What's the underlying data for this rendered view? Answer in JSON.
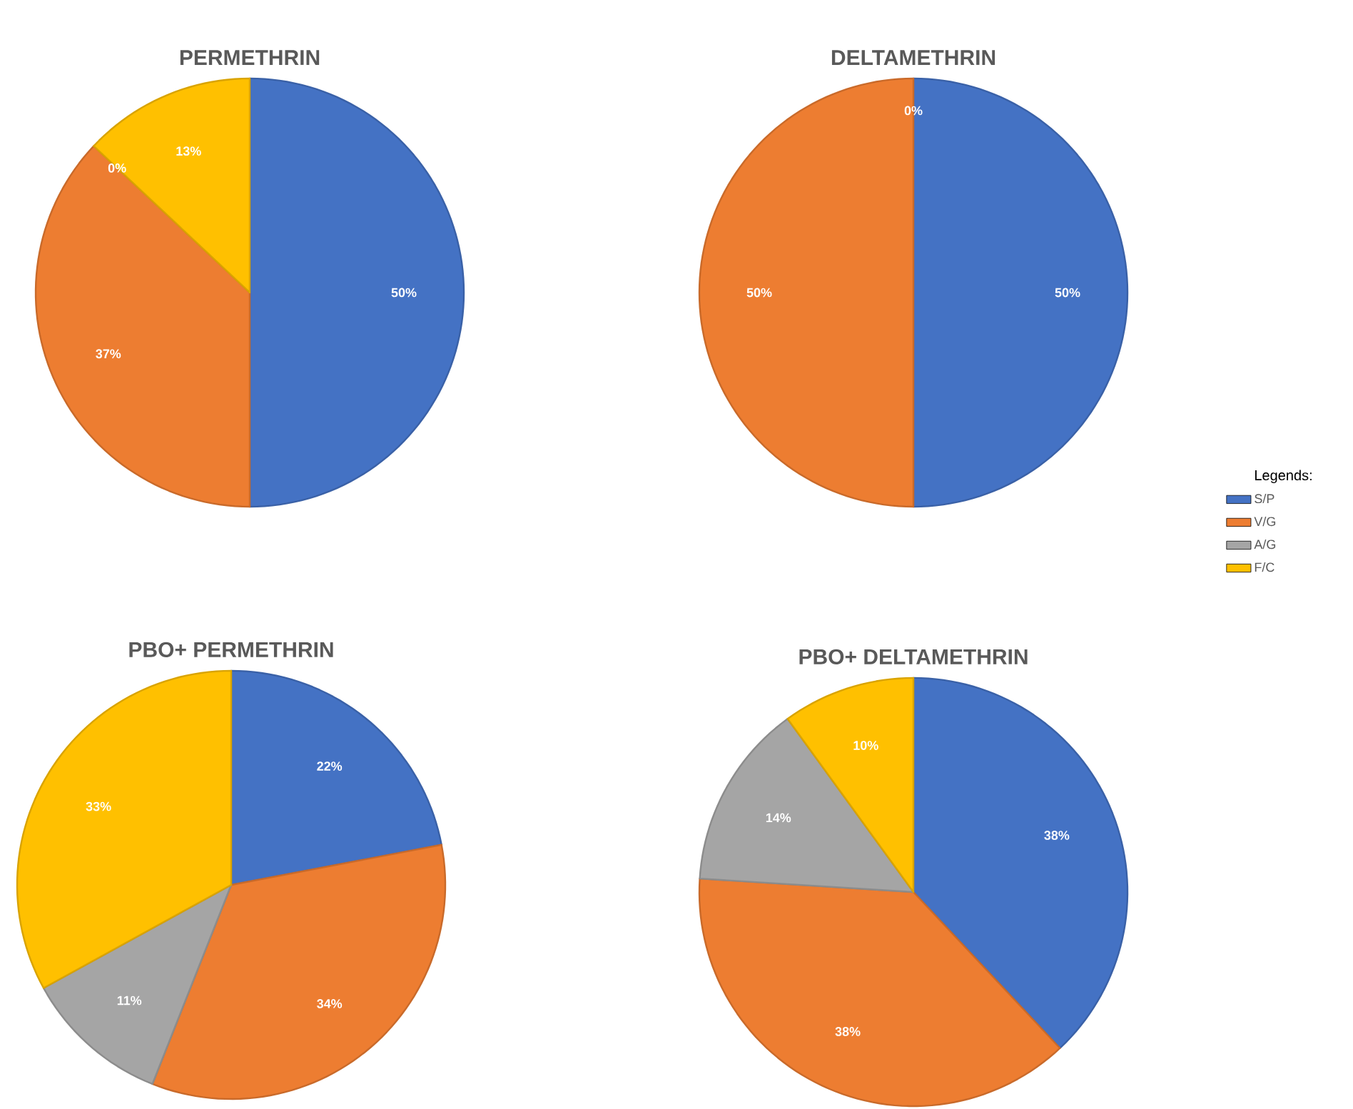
{
  "chart_data": [
    {
      "type": "pie",
      "title": "PERMETHRIN",
      "categories": [
        null,
        null,
        null,
        null
      ],
      "values": [
        50,
        37,
        0,
        13
      ],
      "colors": [
        "#4472c4",
        "#ed7d31",
        "#a5a5a5",
        "#ffc000"
      ],
      "value_labels": [
        "50%",
        "37%",
        "0%",
        "13%"
      ]
    },
    {
      "type": "pie",
      "title": "DELTAMETHRIN",
      "categories": [
        "S/P",
        "V/G",
        "A/G",
        "F/C"
      ],
      "values": [
        50,
        50,
        0,
        0
      ],
      "colors": [
        "#4472c4",
        "#ed7d31",
        "#a5a5a5",
        "#ffc000"
      ],
      "value_labels": [
        "50%",
        "50%",
        "0%",
        null
      ],
      "legend": "right",
      "legend_title": "Legends:"
    },
    {
      "type": "pie",
      "title": "PBO+ PERMETHRIN",
      "categories": [
        null,
        null,
        null,
        null
      ],
      "values": [
        22,
        34,
        11,
        33
      ],
      "colors": [
        "#4472c4",
        "#ed7d31",
        "#a5a5a5",
        "#ffc000"
      ],
      "value_labels": [
        "22%",
        "34%",
        "11%",
        "33%"
      ]
    },
    {
      "type": "pie",
      "title": "PBO+ DELTAMETHRIN",
      "categories": [
        null,
        null,
        null,
        null
      ],
      "values": [
        38,
        38,
        14,
        10
      ],
      "colors": [
        "#4472c4",
        "#ed7d31",
        "#a5a5a5",
        "#ffc000"
      ],
      "value_labels": [
        "38%",
        "38%",
        "14%",
        "10%"
      ]
    }
  ]
}
